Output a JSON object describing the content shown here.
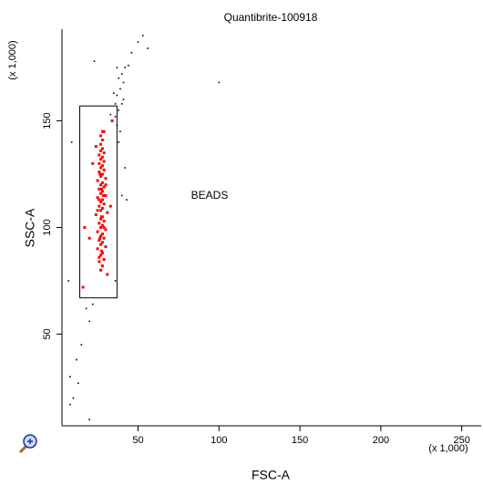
{
  "chart_data": {
    "type": "scatter",
    "title": "Quantibrite-100918",
    "x_label": "FSC-A",
    "y_label": "SSC-A",
    "x_multiplier": "(x 1,000)",
    "y_multiplier": "(x 1,000)",
    "xlim": [
      3,
      262
    ],
    "ylim": [
      7,
      193
    ],
    "xticks": [
      50,
      100,
      150,
      200,
      250
    ],
    "yticks": [
      50,
      100,
      150
    ],
    "gate": {
      "label": "BEADS",
      "x": [
        14,
        37
      ],
      "y": [
        67,
        157
      ]
    },
    "series": [
      {
        "color": "#ff0000",
        "x": [
          27,
          28,
          26,
          29,
          27,
          28,
          25,
          30,
          27,
          28,
          26,
          29,
          27,
          28,
          25,
          30,
          27,
          28,
          26,
          29,
          27,
          28,
          24,
          31,
          27,
          28,
          26,
          29,
          27,
          28,
          25,
          30,
          27,
          28,
          26,
          29,
          27,
          28,
          25,
          30,
          27,
          28,
          26,
          29,
          27,
          28,
          26,
          29,
          27,
          28,
          26,
          29,
          27,
          28,
          27,
          28,
          27,
          28,
          26.5,
          27.5,
          26,
          29,
          25,
          30,
          27.5,
          28.5,
          26.5,
          27.5,
          16,
          20,
          33,
          22,
          34,
          17,
          31,
          24,
          29,
          26
        ],
        "y": [
          80,
          82,
          84,
          85,
          87,
          88,
          90,
          91,
          92,
          93,
          94,
          95,
          96,
          97,
          98,
          99,
          100,
          101,
          102,
          103,
          104,
          105,
          106,
          107,
          108,
          109,
          110,
          111,
          112,
          113,
          114,
          115,
          116,
          117,
          118,
          119,
          120,
          121,
          122,
          123,
          124,
          125,
          126,
          127,
          128,
          129,
          130,
          131,
          132,
          133,
          134,
          135,
          136,
          137,
          139,
          141,
          143,
          145,
          95,
          105,
          113,
          100,
          108,
          120,
          89,
          115,
          125,
          118,
          72,
          95,
          110,
          130,
          150,
          100,
          78,
          138,
          145,
          86
        ]
      },
      {
        "color": "#000000",
        "x": [
          10,
          8,
          12,
          15,
          20,
          18,
          22,
          7,
          36,
          40,
          43,
          38,
          37,
          36,
          38,
          40,
          37,
          39,
          41,
          38,
          40,
          42,
          44,
          46,
          50,
          53,
          56,
          100,
          9,
          42,
          8,
          33,
          39,
          23,
          35,
          37,
          13,
          20,
          41,
          36
        ],
        "y": [
          20,
          30,
          38,
          45,
          56,
          62,
          64,
          75,
          75,
          115,
          113,
          140,
          148,
          152,
          155,
          158,
          162,
          165,
          168,
          170,
          172,
          175,
          176,
          182,
          187,
          190,
          184,
          168,
          140,
          128,
          17,
          153,
          145,
          178,
          163,
          175,
          27,
          10,
          160,
          158
        ]
      }
    ]
  }
}
